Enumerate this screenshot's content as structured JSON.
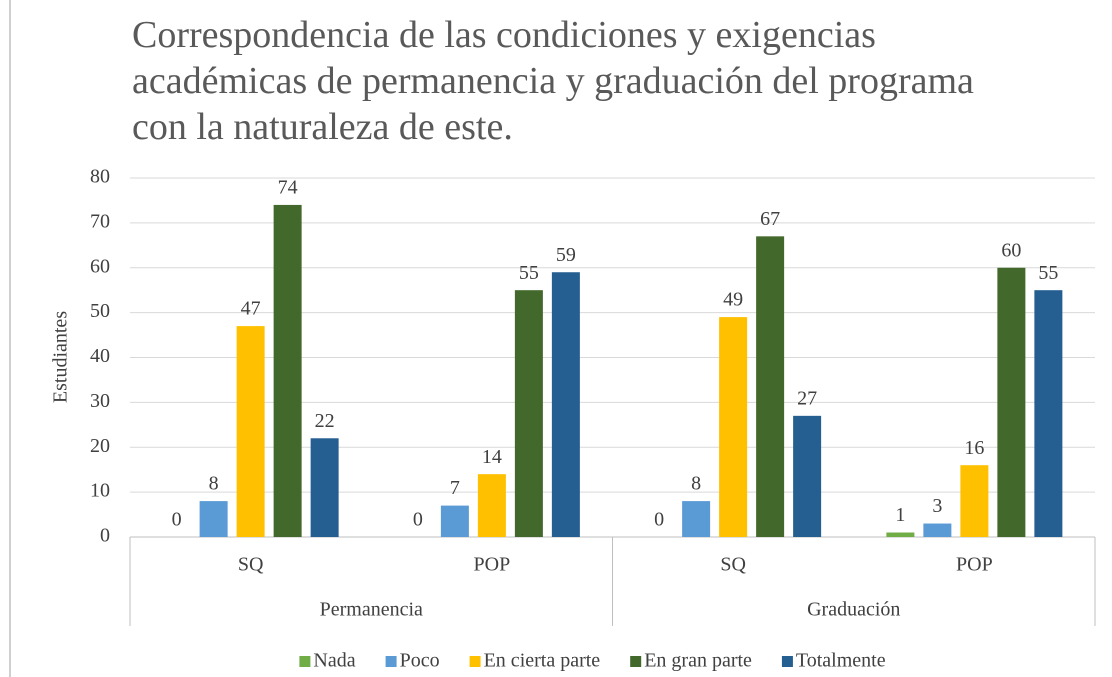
{
  "chart_data": {
    "type": "bar",
    "title": "Correspondencia de las condiciones y exigencias académicas de permanencia y graduación del programa con la naturaleza de este.",
    "y_label": "Estudiantes",
    "groups": [
      {
        "label": "Permanencia",
        "categories": [
          "SQ",
          "POP"
        ]
      },
      {
        "label": "Graduación",
        "categories": [
          "SQ",
          "POP"
        ]
      }
    ],
    "series": [
      {
        "name": "Nada",
        "color": "#70ad47",
        "values": [
          0,
          0,
          0,
          1
        ]
      },
      {
        "name": "Poco",
        "color": "#5b9bd5",
        "values": [
          8,
          7,
          8,
          3
        ]
      },
      {
        "name": "En cierta parte",
        "color": "#ffc000",
        "values": [
          47,
          14,
          49,
          16
        ]
      },
      {
        "name": "En gran parte",
        "color": "#43682b",
        "values": [
          74,
          55,
          67,
          60
        ]
      },
      {
        "name": "Totalmente",
        "color": "#255e91",
        "values": [
          22,
          59,
          27,
          55
        ]
      }
    ],
    "ylim": [
      0,
      80
    ],
    "yticks": [
      0,
      10,
      20,
      30,
      40,
      50,
      60,
      70,
      80
    ],
    "grid": true,
    "legend": "bottom"
  }
}
